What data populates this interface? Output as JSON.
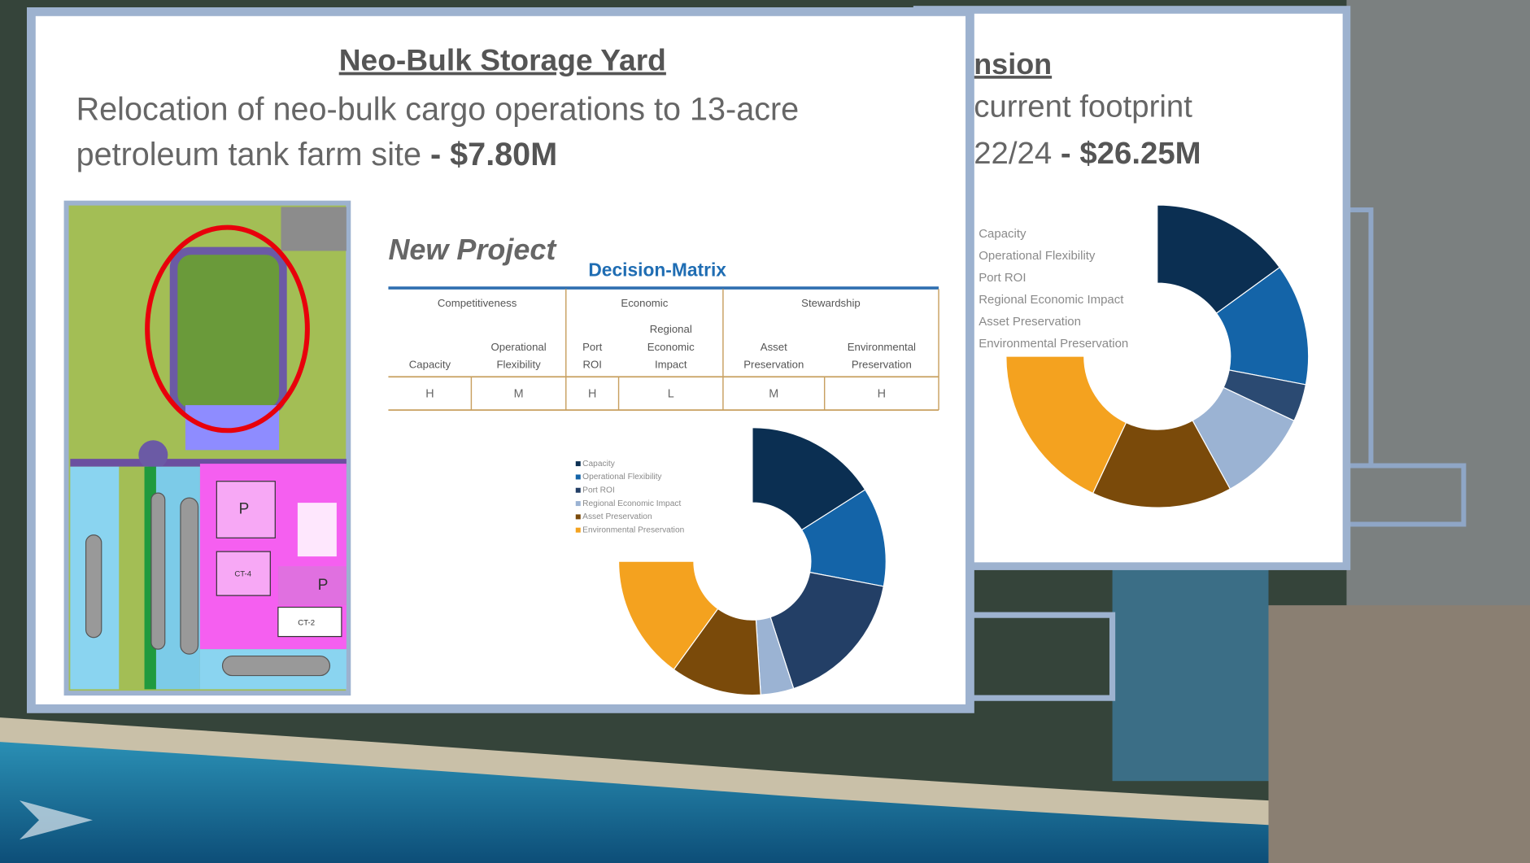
{
  "front_card": {
    "title": "Neo-Bulk Storage Yard",
    "description": [
      "Relocation of neo-bulk cargo operations to 13-acre",
      "petroleum tank farm site"
    ],
    "price": "- $7.80M",
    "map_labels": [
      "P",
      "CT-4",
      "P",
      "CT-2"
    ],
    "new_project": "New Project",
    "matrix_title": "Decision-Matrix",
    "matrix": {
      "groups": [
        "Competitiveness",
        "Economic",
        "Stewardship"
      ],
      "columns": [
        [
          "Capacity"
        ],
        [
          "Operational",
          "Flexibility"
        ],
        [
          "Port",
          "ROI"
        ],
        [
          "Regional",
          "Economic",
          "Impact"
        ],
        [
          "Asset",
          "Preservation"
        ],
        [
          "Environmental",
          "Preservation"
        ]
      ],
      "ratings": [
        "H",
        "M",
        "H",
        "L",
        "M",
        "H"
      ]
    }
  },
  "back_card": {
    "title_fragment": "nsion",
    "description_fragment": [
      "current footprint",
      "22/24"
    ],
    "price": "- $26.25M"
  },
  "chart_data": [
    {
      "type": "donut",
      "categories": [
        "Capacity",
        "Operational Flexibility",
        "Port ROI",
        "Regional Economic Impact",
        "Asset Preservation",
        "Environmental Preservation"
      ],
      "values": [
        16,
        12,
        17,
        4,
        11,
        15
      ],
      "colors": [
        "#0b2f52",
        "#1464a8",
        "#233f66",
        "#9bb3d3",
        "#7a4a0a",
        "#f4a21f"
      ]
    },
    {
      "type": "donut",
      "categories": [
        "Capacity",
        "Operational Flexibility",
        "Port ROI",
        "Regional Economic Impact",
        "Asset Preservation",
        "Environmental Preservation"
      ],
      "values": [
        15,
        13,
        4,
        10,
        15,
        18
      ],
      "colors": [
        "#0b2f52",
        "#1464a8",
        "#2b4a72",
        "#9bb3d3",
        "#7a4a0a",
        "#f4a21f"
      ]
    }
  ]
}
